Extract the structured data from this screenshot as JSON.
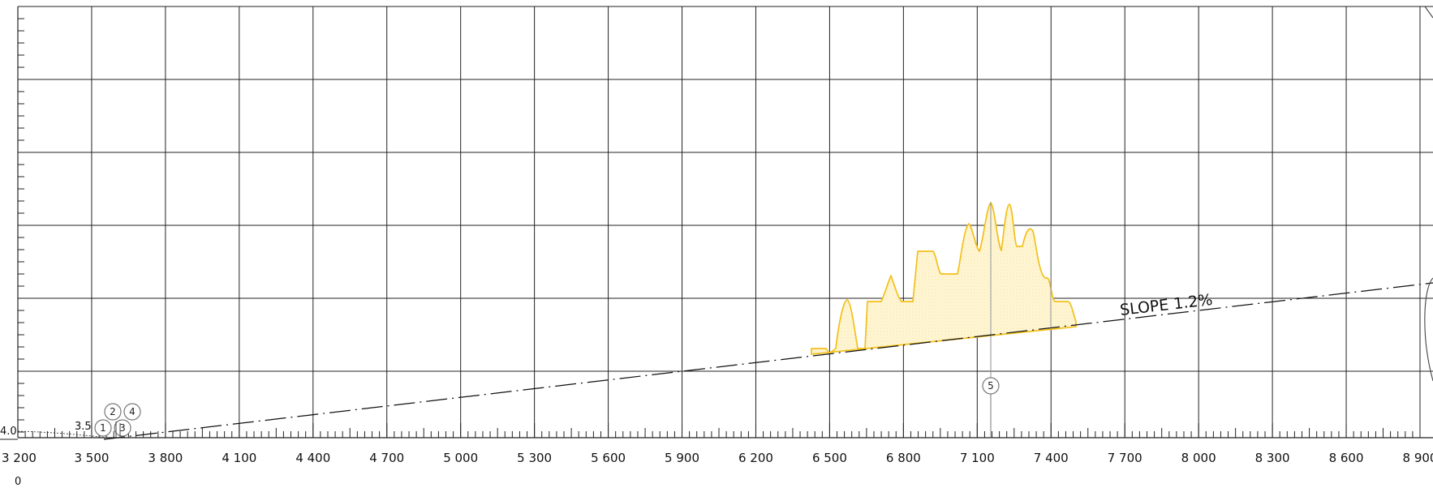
{
  "chart_data": {
    "type": "area",
    "x_ticks": [
      "3 200",
      "3 500",
      "3 800",
      "4 100",
      "4 400",
      "4 700",
      "5 000",
      "5 300",
      "5 600",
      "5 900",
      "6 200",
      "6 500",
      "6 800",
      "7 100",
      "7 400",
      "7 700",
      "8 000",
      "8 300",
      "8 600",
      "8 900"
    ],
    "x_range": [
      3200,
      8900
    ],
    "y_left_labels": {
      "upper": "4.0",
      "lower": "3.5"
    },
    "bottom_left_label": "0",
    "slope_label": "SLOPE 1.2%",
    "callouts": [
      "1",
      "2",
      "3",
      "4",
      "5"
    ],
    "colors": {
      "grid": "#222222",
      "slope": "#111111",
      "profile": "#f2c01b",
      "profile_fill": "#fff3c7"
    }
  }
}
